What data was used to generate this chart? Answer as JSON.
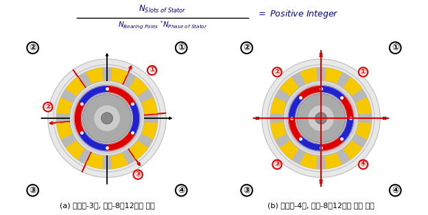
{
  "bg_color": "#ffffff",
  "label_a": "(a) 베어링-3극, 모터-8극12슬롯 구조",
  "label_b": "(b) 베어링-4극, 모터-8극12슬롯 형상 구조",
  "stator_gray": "#b8b8b8",
  "stator_light": "#d0d0d0",
  "slot_yellow": "#f5c800",
  "slot_yellow_dark": "#e8b800",
  "bear_red": "#dd0000",
  "bear_blue": "#2222cc",
  "rotor_gray": "#aaaaaa",
  "rotor_light": "#cccccc",
  "shaft_gray": "#999999",
  "outer_bg": "#e8e8e8",
  "n_slots": 12,
  "n_bearing_poles_a": 3,
  "n_bearing_poles_b": 4,
  "n_rotor_spokes_a": 3,
  "n_rotor_spokes_b": 4,
  "diag_angles_a": [
    65,
    185,
    305
  ],
  "R_outermost": 1.05,
  "R_outer_ring": 0.95,
  "R_slot_outer": 0.9,
  "R_slot_inner": 0.68,
  "R_stator_inner": 0.65,
  "R_bear_outer": 0.58,
  "R_bear_inner": 0.46,
  "R_rotor_outer": 0.43,
  "R_rotor_spoke_out": 0.41,
  "R_rotor_spoke_in": 0.22,
  "R_rotor_inner": 0.2,
  "R_shaft": 0.1
}
